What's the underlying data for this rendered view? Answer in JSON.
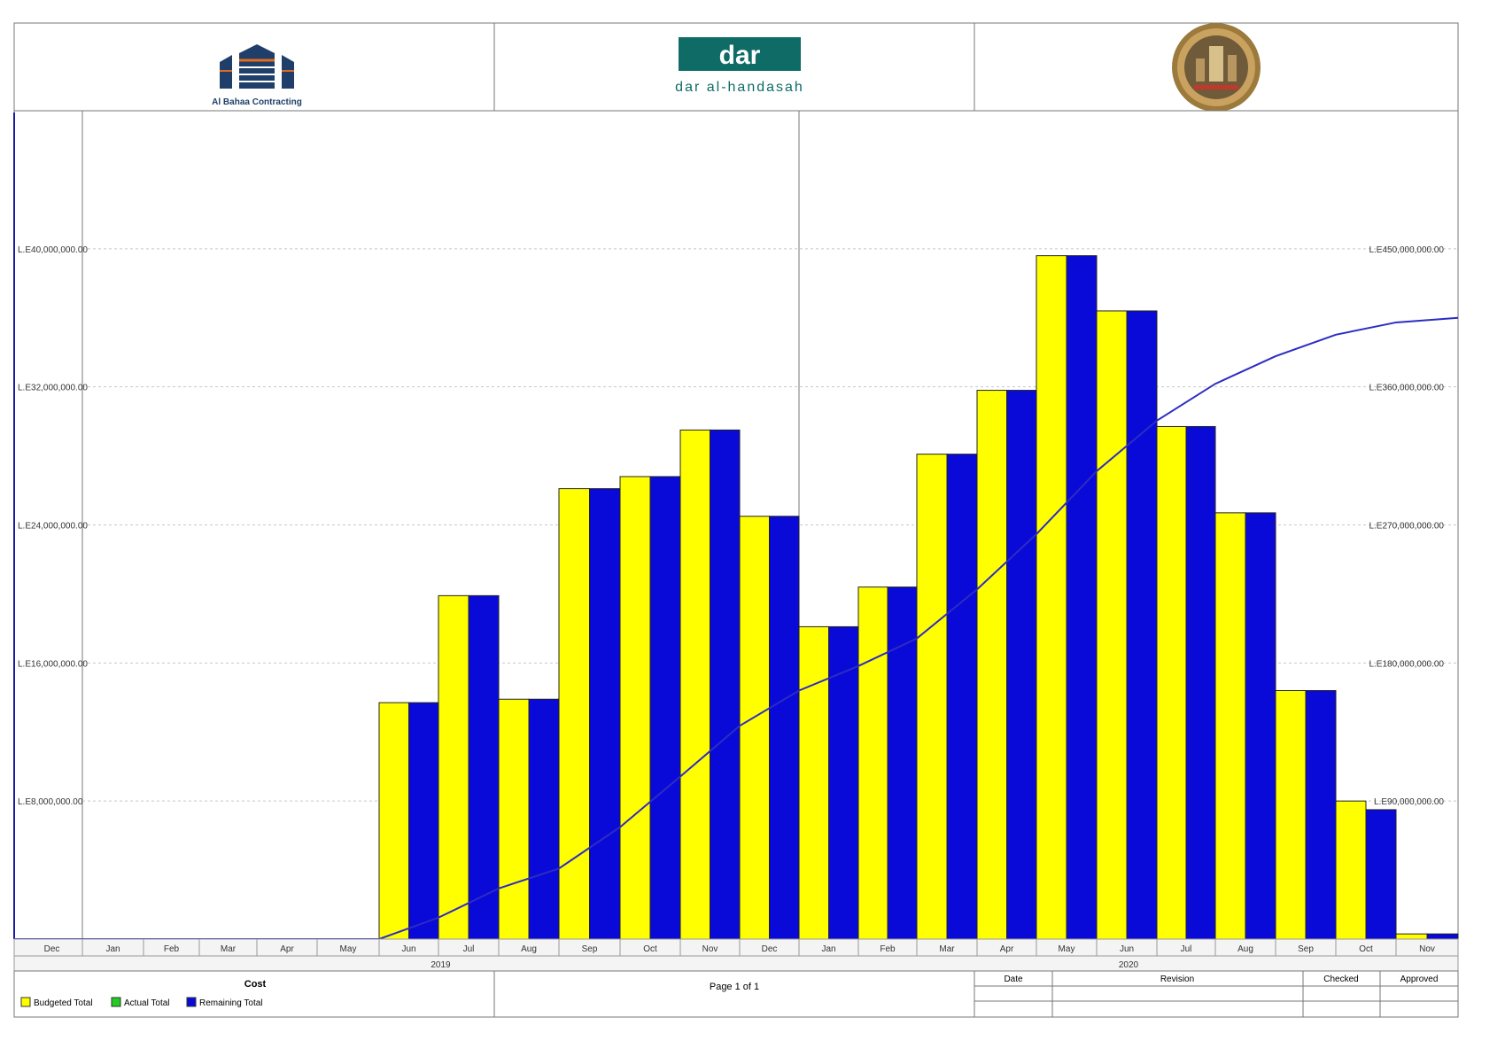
{
  "header": {
    "left_logo_text": "Al Bahaa Contracting",
    "center_logo_mark": "dar",
    "center_logo_text": "dar al-handasah",
    "right_logo": "seal-emblem"
  },
  "footer": {
    "legend_title": "Cost",
    "legend_items": [
      {
        "label": "Budgeted Total",
        "color": "#ffff00"
      },
      {
        "label": "Actual Total",
        "color": "#22cc22"
      },
      {
        "label": "Remaining Total",
        "color": "#0a0ad8"
      }
    ],
    "page_label": "Page 1 of 1",
    "table_headers": [
      "Date",
      "Revision",
      "Checked",
      "Approved"
    ]
  },
  "chart_data": {
    "type": "bar",
    "left_axis_ticks": [
      "L.E8,000,000.00",
      "L.E16,000,000.00",
      "L.E24,000,000.00",
      "L.E32,000,000.00",
      "L.E40,000,000.00"
    ],
    "left_axis_values": [
      8000000,
      16000000,
      24000000,
      32000000,
      40000000
    ],
    "right_axis_ticks": [
      "L.E90,000,000.00",
      "L.E180,000,000.00",
      "L.E270,000,000.00",
      "L.E360,000,000.00",
      "L.E450,000,000.00"
    ],
    "right_axis_values": [
      90000000,
      180000000,
      270000000,
      360000000,
      450000000
    ],
    "ylim_left": [
      0,
      48000000
    ],
    "ylim_right": [
      0,
      540000000
    ],
    "years": [
      {
        "label": "2019",
        "start": 1,
        "end": 12
      },
      {
        "label": "2020",
        "start": 13,
        "end": 23
      }
    ],
    "categories": [
      "Dec",
      "Jan",
      "Feb",
      "Mar",
      "Apr",
      "May",
      "Jun",
      "Jul",
      "Aug",
      "Sep",
      "Oct",
      "Nov",
      "Dec",
      "Jan",
      "Feb",
      "Mar",
      "Apr",
      "May",
      "Jun",
      "Jul",
      "Aug",
      "Sep",
      "Oct",
      "Nov"
    ],
    "series": [
      {
        "name": "Budgeted Total",
        "color": "#ffff00",
        "values": [
          0,
          0,
          0,
          0,
          0,
          0,
          13700000,
          19900000,
          13900000,
          26100000,
          26800000,
          29500000,
          24500000,
          18100000,
          20400000,
          28100000,
          31800000,
          39600000,
          36400000,
          29700000,
          24700000,
          14400000,
          8000000,
          300000
        ]
      },
      {
        "name": "Remaining Total",
        "color": "#0a0ad8",
        "values": [
          0,
          0,
          0,
          0,
          0,
          0,
          13700000,
          19900000,
          13900000,
          26100000,
          26800000,
          29500000,
          24500000,
          18100000,
          20400000,
          28100000,
          31800000,
          39600000,
          36400000,
          29700000,
          24700000,
          14400000,
          7500000,
          300000
        ]
      }
    ],
    "cumulative_line": {
      "color": "#2c2cc4",
      "values": [
        0,
        0,
        0,
        0,
        0,
        0,
        14000000,
        33000000,
        46000000,
        73000000,
        106000000,
        139000000,
        162000000,
        178000000,
        196000000,
        228000000,
        264000000,
        305000000,
        338000000,
        362000000,
        380000000,
        394000000,
        402000000,
        405000000
      ]
    }
  }
}
